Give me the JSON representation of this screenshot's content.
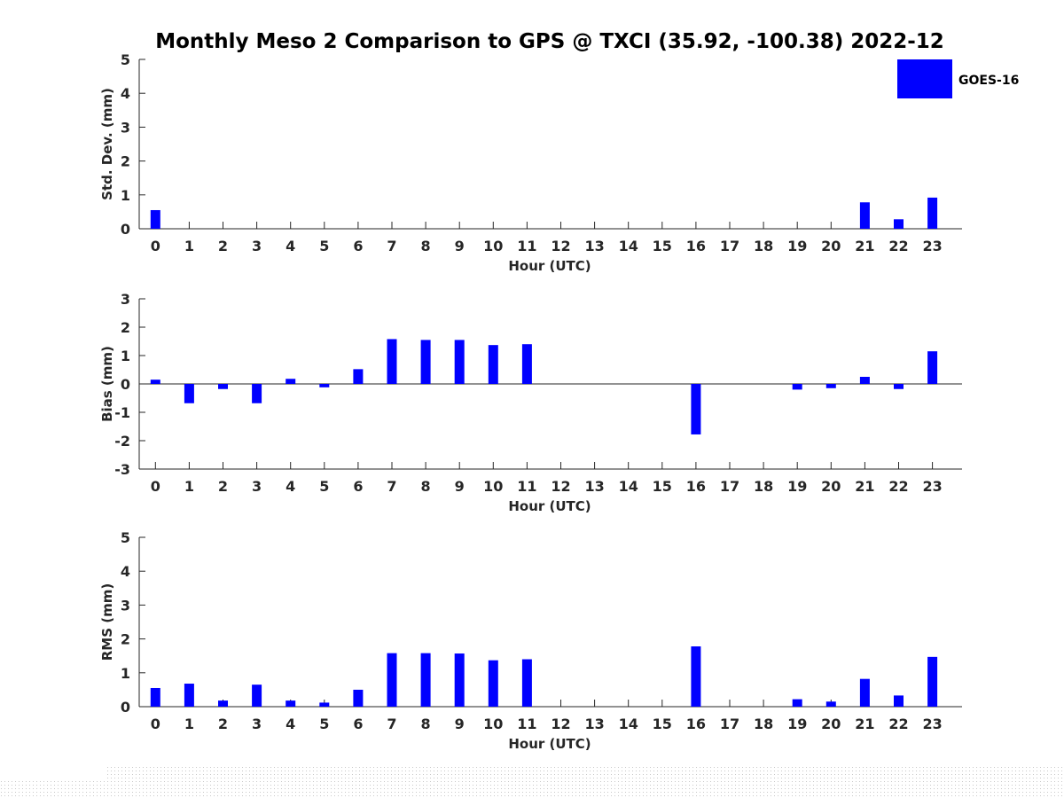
{
  "colors": {
    "bar": "#0000ff",
    "axis": "#262626",
    "background": "#ffffff"
  },
  "chart_data": {
    "type": "bar",
    "title": "Monthly Meso 2 Comparison to GPS @ TXCI (35.92, -100.38) 2022-12",
    "legend": {
      "entries": [
        "GOES-16"
      ],
      "placement": "top-right"
    },
    "categories": [
      "0",
      "1",
      "2",
      "3",
      "4",
      "5",
      "6",
      "7",
      "8",
      "9",
      "10",
      "11",
      "12",
      "13",
      "14",
      "15",
      "16",
      "17",
      "18",
      "19",
      "20",
      "21",
      "22",
      "23"
    ],
    "panels": [
      {
        "ylabel": "Std. Dev. (mm)",
        "xlabel": "Hour (UTC)",
        "ylim": [
          0,
          5
        ],
        "yticks": [
          "0",
          "1",
          "2",
          "3",
          "4",
          "5"
        ],
        "zero_line": false,
        "series": [
          {
            "name": "GOES-16",
            "values": [
              0.55,
              null,
              null,
              null,
              null,
              null,
              null,
              null,
              null,
              null,
              null,
              null,
              null,
              null,
              null,
              null,
              null,
              null,
              null,
              null,
              null,
              0.78,
              0.28,
              0.92
            ]
          }
        ]
      },
      {
        "ylabel": "Bias (mm)",
        "xlabel": "Hour (UTC)",
        "ylim": [
          -3,
          3
        ],
        "yticks": [
          "-3",
          "-2",
          "-1",
          "0",
          "1",
          "2",
          "3"
        ],
        "zero_line": true,
        "series": [
          {
            "name": "GOES-16",
            "values": [
              0.15,
              -0.68,
              -0.18,
              -0.68,
              0.18,
              -0.12,
              0.52,
              1.58,
              1.55,
              1.55,
              1.37,
              1.4,
              null,
              null,
              null,
              null,
              -1.78,
              null,
              null,
              -0.2,
              -0.15,
              0.25,
              -0.18,
              1.15
            ]
          }
        ]
      },
      {
        "ylabel": "RMS (mm)",
        "xlabel": "Hour (UTC)",
        "ylim": [
          0,
          5
        ],
        "yticks": [
          "0",
          "1",
          "2",
          "3",
          "4",
          "5"
        ],
        "zero_line": false,
        "series": [
          {
            "name": "GOES-16",
            "values": [
              0.55,
              0.68,
              0.18,
              0.65,
              0.18,
              0.12,
              0.5,
              1.58,
              1.58,
              1.57,
              1.37,
              1.4,
              null,
              null,
              null,
              null,
              1.78,
              null,
              null,
              0.22,
              0.15,
              0.82,
              0.33,
              1.47
            ]
          }
        ]
      }
    ]
  }
}
